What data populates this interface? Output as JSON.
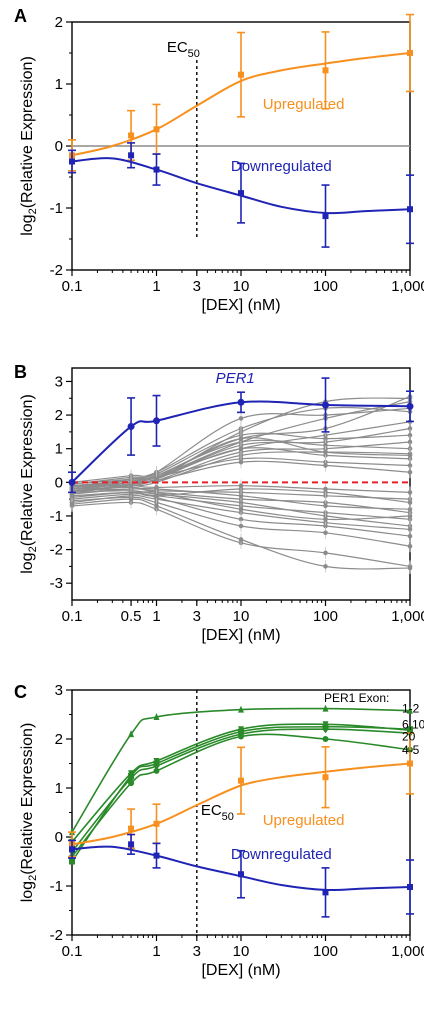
{
  "chart_data": [
    {
      "panel": "A",
      "type": "line",
      "xscale": "log",
      "xlim": [
        0.1,
        1000
      ],
      "ylim": [
        -2,
        2
      ],
      "xticks": [
        "0.1",
        "1",
        "3",
        "10",
        "100",
        "1,000"
      ],
      "yticks": [
        "-2",
        "-1",
        "0",
        "1",
        "2"
      ],
      "xlabel": "[DEX] (nM)",
      "ylabel_parts": [
        "log",
        "2",
        "(Relative Expression)"
      ],
      "ec50": {
        "x": 3,
        "label_main": "EC",
        "label_sub": "50",
        "label_pos": "top"
      },
      "series": [
        {
          "name": "Upregulated",
          "color": "#f7901e",
          "marker": "square",
          "x": [
            0.1,
            0.5,
            1,
            10,
            100,
            1000
          ],
          "y": [
            -0.15,
            0.17,
            0.27,
            1.15,
            1.22,
            1.5
          ],
          "err": [
            0.25,
            0.4,
            0.4,
            0.68,
            0.62,
            0.62
          ],
          "curve": [
            [
              0.1,
              -0.15
            ],
            [
              0.3,
              0.0
            ],
            [
              1,
              0.27
            ],
            [
              3,
              0.65
            ],
            [
              10,
              1.05
            ],
            [
              30,
              1.22
            ],
            [
              100,
              1.33
            ],
            [
              300,
              1.42
            ],
            [
              1000,
              1.5
            ]
          ]
        },
        {
          "name": "Downregulated",
          "color": "#1f24b4",
          "marker": "square",
          "x": [
            0.1,
            0.5,
            1,
            10,
            100,
            1000
          ],
          "y": [
            -0.25,
            -0.15,
            -0.38,
            -0.76,
            -1.13,
            -1.02
          ],
          "err": [
            0.18,
            0.2,
            0.25,
            0.48,
            0.5,
            0.55
          ],
          "curve": [
            [
              0.1,
              -0.25
            ],
            [
              0.3,
              -0.2
            ],
            [
              1,
              -0.38
            ],
            [
              3,
              -0.6
            ],
            [
              10,
              -0.8
            ],
            [
              30,
              -0.98
            ],
            [
              100,
              -1.08
            ],
            [
              300,
              -1.05
            ],
            [
              1000,
              -1.02
            ]
          ]
        }
      ],
      "labels": [
        {
          "text": "Upregulated",
          "color": "#f7901e",
          "x": 55,
          "y": 0.6
        },
        {
          "text": "Downregulated",
          "color": "#1f24b4",
          "x": 30,
          "y": -0.4
        }
      ]
    },
    {
      "panel": "B",
      "type": "line",
      "xscale": "log",
      "xlim": [
        0.1,
        1000
      ],
      "ylim": [
        -3.5,
        3.4
      ],
      "xticks": [
        "0.1",
        "0.5",
        "1",
        "3",
        "10",
        "100",
        "1,000"
      ],
      "yticks": [
        "-3",
        "-2",
        "-1",
        "0",
        "1",
        "2",
        "3"
      ],
      "xlabel": "[DEX] (nM)",
      "ylabel_parts": [
        "log",
        "2",
        "(Relative Expression)"
      ],
      "highlight": {
        "name": "PER1",
        "color": "#1f24b4",
        "x": [
          0.1,
          0.5,
          1,
          10,
          100,
          1000
        ],
        "y": [
          0.0,
          1.66,
          1.83,
          2.38,
          2.3,
          2.26
        ],
        "err": [
          0.3,
          0.85,
          0.75,
          0.3,
          0.8,
          0.45
        ]
      },
      "zero_line_color": "#e8202a",
      "gray_color": "#8c8c8c",
      "gray_x": [
        0.1,
        0.5,
        1,
        10,
        100,
        1000
      ],
      "gray_series": [
        [
          -0.05,
          0.1,
          0.2,
          1.3,
          1.6,
          2.55
        ],
        [
          -0.1,
          0.05,
          0.15,
          1.2,
          1.9,
          2.4
        ],
        [
          0.0,
          0.2,
          0.3,
          1.6,
          2.2,
          2.1
        ],
        [
          -0.2,
          0.0,
          0.1,
          1.5,
          2.4,
          2.5
        ],
        [
          -0.15,
          0.1,
          0.3,
          1.9,
          2.0,
          2.2
        ],
        [
          -0.1,
          -0.05,
          0.2,
          1.0,
          1.4,
          1.8
        ],
        [
          -0.3,
          -0.1,
          0.1,
          1.1,
          1.2,
          1.6
        ],
        [
          -0.05,
          0.15,
          0.25,
          1.4,
          1.3,
          1.4
        ],
        [
          -0.2,
          0.0,
          0.05,
          0.9,
          1.0,
          1.2
        ],
        [
          -0.1,
          0.05,
          0.2,
          1.2,
          1.1,
          1.0
        ],
        [
          -0.25,
          -0.1,
          0.0,
          0.8,
          0.9,
          0.85
        ],
        [
          -0.3,
          -0.05,
          0.1,
          1.0,
          0.8,
          0.7
        ],
        [
          -0.1,
          0.0,
          0.15,
          0.7,
          0.6,
          0.5
        ],
        [
          -0.2,
          -0.05,
          0.05,
          0.6,
          0.5,
          0.3
        ],
        [
          -0.15,
          0.0,
          0.1,
          1.3,
          0.9,
          0.8
        ],
        [
          -0.4,
          -0.3,
          -0.3,
          -0.5,
          -0.6,
          -0.9
        ],
        [
          -0.5,
          -0.35,
          -0.4,
          -0.7,
          -0.9,
          -1.1
        ],
        [
          -0.3,
          -0.25,
          -0.35,
          -0.6,
          -1.0,
          -1.3
        ],
        [
          -0.6,
          -0.4,
          -0.5,
          -0.9,
          -1.2,
          -1.4
        ],
        [
          -0.45,
          -0.3,
          -0.45,
          -1.1,
          -1.3,
          -1.6
        ],
        [
          -0.55,
          -0.45,
          -0.6,
          -1.3,
          -1.5,
          -1.9
        ],
        [
          -0.35,
          -0.2,
          -0.3,
          -0.8,
          -1.1,
          -1.0
        ],
        [
          -0.7,
          -0.6,
          -0.8,
          -1.8,
          -2.1,
          -2.5
        ],
        [
          -0.65,
          -0.5,
          -0.7,
          -1.7,
          -2.5,
          -2.55
        ],
        [
          -0.2,
          -0.15,
          -0.25,
          -0.3,
          -0.4,
          -0.5
        ],
        [
          -0.25,
          -0.2,
          -0.2,
          -0.4,
          -0.7,
          -0.8
        ],
        [
          -0.4,
          -0.3,
          -0.4,
          -0.2,
          -0.3,
          -0.6
        ],
        [
          -0.1,
          -0.1,
          -0.15,
          -0.1,
          -0.2,
          -0.3
        ]
      ]
    },
    {
      "panel": "C",
      "type": "line",
      "xscale": "log",
      "xlim": [
        0.1,
        1000
      ],
      "ylim": [
        -2,
        3
      ],
      "xticks": [
        "0.1",
        "1",
        "3",
        "10",
        "100",
        "1,000"
      ],
      "yticks": [
        "-2",
        "-1",
        "0",
        "1",
        "2",
        "3"
      ],
      "xlabel": "[DEX] (nM)",
      "ylabel_parts": [
        "log",
        "2",
        "(Relative Expression)"
      ],
      "ec50": {
        "x": 3,
        "label_main": "EC",
        "label_sub": "50",
        "label_pos": "mid"
      },
      "exon_title": "PER1 Exon:",
      "exon_color": "#2a8a2a",
      "exon_x": [
        0.1,
        0.5,
        1,
        10,
        100,
        1000
      ],
      "exons": [
        {
          "name": "1-2",
          "y": [
            0.1,
            2.1,
            2.45,
            2.6,
            2.62,
            2.58
          ],
          "marker": "triangle-up"
        },
        {
          "name": "6,10",
          "y": [
            -0.1,
            1.3,
            1.55,
            2.2,
            2.3,
            2.18
          ],
          "marker": "triangle-down"
        },
        {
          "name": "20",
          "y": [
            -0.3,
            1.2,
            1.45,
            2.1,
            2.2,
            2.12
          ],
          "marker": "diamond"
        },
        {
          "name": "4-5",
          "y": [
            -0.4,
            1.1,
            1.35,
            2.05,
            2.0,
            1.78
          ],
          "marker": "circle"
        },
        {
          "name": "",
          "y": [
            -0.5,
            1.25,
            1.5,
            2.15,
            2.25,
            2.2
          ],
          "marker": "square"
        }
      ],
      "series": [
        {
          "name": "Upregulated",
          "color": "#f7901e",
          "marker": "square",
          "x": [
            0.1,
            0.5,
            1,
            10,
            100,
            1000
          ],
          "y": [
            -0.15,
            0.17,
            0.27,
            1.15,
            1.22,
            1.5
          ],
          "err": [
            0.25,
            0.4,
            0.4,
            0.68,
            0.62,
            0.62
          ],
          "curve": [
            [
              0.1,
              -0.15
            ],
            [
              0.3,
              0.0
            ],
            [
              1,
              0.27
            ],
            [
              3,
              0.65
            ],
            [
              10,
              1.05
            ],
            [
              30,
              1.22
            ],
            [
              100,
              1.33
            ],
            [
              300,
              1.42
            ],
            [
              1000,
              1.5
            ]
          ]
        },
        {
          "name": "Downregulated",
          "color": "#1f24b4",
          "marker": "square",
          "x": [
            0.1,
            0.5,
            1,
            10,
            100,
            1000
          ],
          "y": [
            -0.25,
            -0.15,
            -0.38,
            -0.76,
            -1.13,
            -1.02
          ],
          "err": [
            0.18,
            0.2,
            0.25,
            0.48,
            0.5,
            0.55
          ],
          "curve": [
            [
              0.1,
              -0.25
            ],
            [
              0.3,
              -0.2
            ],
            [
              1,
              -0.38
            ],
            [
              3,
              -0.6
            ],
            [
              10,
              -0.8
            ],
            [
              30,
              -0.98
            ],
            [
              100,
              -1.08
            ],
            [
              300,
              -1.05
            ],
            [
              1000,
              -1.02
            ]
          ]
        }
      ],
      "labels": [
        {
          "text": "Upregulated",
          "color": "#f7901e",
          "x": 55,
          "y": 0.25
        },
        {
          "text": "Downregulated",
          "color": "#1f24b4",
          "x": 30,
          "y": -0.45
        }
      ]
    }
  ]
}
